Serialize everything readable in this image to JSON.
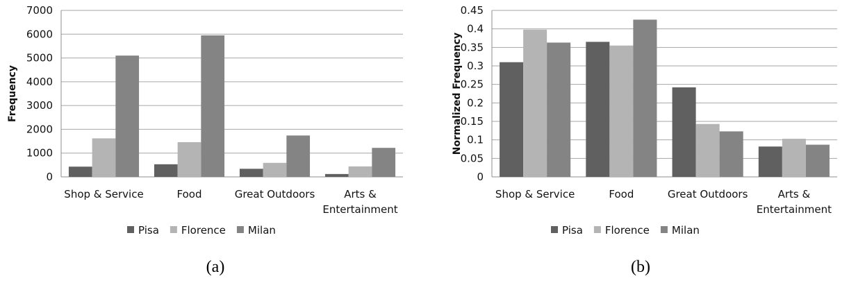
{
  "chart_data": [
    {
      "type": "bar",
      "caption": "(a)",
      "ylabel": "Frequency",
      "xlabel": "",
      "ylim": [
        0,
        7000
      ],
      "yticks": [
        0,
        1000,
        2000,
        3000,
        4000,
        5000,
        6000,
        7000
      ],
      "ytick_labels": [
        "0",
        "1000",
        "2000",
        "3000",
        "4000",
        "5000",
        "6000",
        "7000"
      ],
      "grid": true,
      "legend_position": "bottom",
      "categories": [
        [
          "Shop & Service"
        ],
        [
          "Food"
        ],
        [
          "Great Outdoors"
        ],
        [
          "Arts &",
          "Entertainment"
        ]
      ],
      "series": [
        {
          "name": "Pisa",
          "color": "#606060",
          "values": [
            430,
            530,
            340,
            120
          ]
        },
        {
          "name": "Florence",
          "color": "#b4b4b4",
          "values": [
            1620,
            1460,
            590,
            440
          ]
        },
        {
          "name": "Milan",
          "color": "#848484",
          "values": [
            5100,
            5950,
            1740,
            1220
          ]
        }
      ]
    },
    {
      "type": "bar",
      "caption": "(b)",
      "ylabel": "Normalized Frequency",
      "xlabel": "",
      "ylim": [
        0,
        0.45
      ],
      "yticks": [
        0,
        0.05,
        0.1,
        0.15,
        0.2,
        0.25,
        0.3,
        0.35,
        0.4,
        0.45
      ],
      "ytick_labels": [
        "0",
        "0.05",
        "0.1",
        "0.15",
        "0.2",
        "0.25",
        "0.3",
        "0.35",
        "0.4",
        "0.45"
      ],
      "grid": true,
      "legend_position": "bottom",
      "categories": [
        [
          "Shop & Service"
        ],
        [
          "Food"
        ],
        [
          "Great Outdoors"
        ],
        [
          "Arts &",
          "Entertainment"
        ]
      ],
      "series": [
        {
          "name": "Pisa",
          "color": "#606060",
          "values": [
            0.31,
            0.365,
            0.242,
            0.082
          ]
        },
        {
          "name": "Florence",
          "color": "#b4b4b4",
          "values": [
            0.398,
            0.355,
            0.143,
            0.103
          ]
        },
        {
          "name": "Milan",
          "color": "#848484",
          "values": [
            0.363,
            0.425,
            0.123,
            0.087
          ]
        }
      ]
    }
  ]
}
